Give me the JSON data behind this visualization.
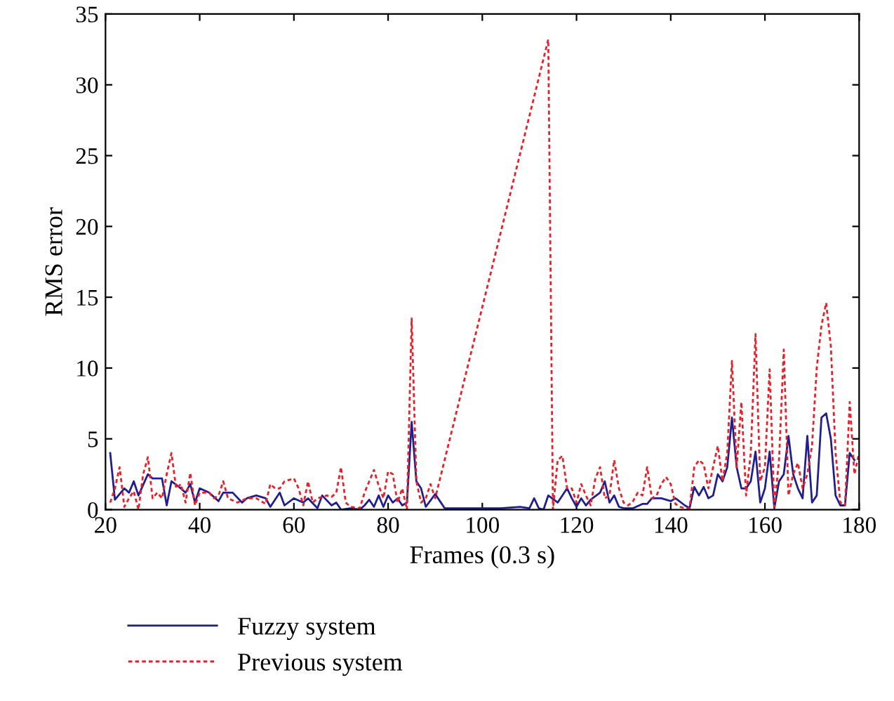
{
  "chart_data": {
    "type": "line",
    "xlabel": "Frames (0.3 s)",
    "ylabel": "RMS error",
    "xlim": [
      20,
      180
    ],
    "ylim": [
      0,
      35
    ],
    "xticks": [
      20,
      40,
      60,
      80,
      100,
      120,
      140,
      160,
      180
    ],
    "yticks": [
      0,
      5,
      10,
      15,
      20,
      25,
      30,
      35
    ],
    "grid": false,
    "legend": "bottom",
    "marker": "none",
    "series": [
      {
        "name": "Fuzzy system",
        "color": "#1f1f8f",
        "line_style": "solid",
        "x": [
          21,
          22,
          24,
          25,
          26,
          27,
          29,
          30,
          32,
          33,
          34,
          36,
          37,
          38,
          39,
          40,
          42,
          44,
          45,
          47,
          49,
          50,
          52,
          54,
          55,
          57,
          58,
          60,
          62,
          63,
          65,
          66,
          68,
          69,
          70,
          72,
          74,
          75,
          76,
          77,
          78,
          79,
          80,
          81,
          82,
          83,
          84,
          85,
          86,
          87,
          88,
          90,
          92,
          100,
          104,
          108,
          110,
          111,
          112,
          113,
          114,
          116,
          118,
          119,
          120,
          121,
          122,
          123,
          125,
          126,
          127,
          128,
          129,
          130,
          132,
          134,
          135,
          136,
          138,
          140,
          141,
          143,
          144,
          145,
          146,
          147,
          148,
          149,
          150,
          151,
          152,
          153,
          154,
          155,
          156,
          157,
          158,
          159,
          160,
          161,
          162,
          163,
          164,
          165,
          166,
          167,
          168,
          169,
          170,
          171,
          172,
          173,
          174,
          175,
          176,
          177,
          178,
          179
        ],
        "values": [
          4,
          0.7,
          1.5,
          1.2,
          2,
          1,
          2.5,
          2.2,
          2.2,
          0.3,
          2,
          1.5,
          1.2,
          1.8,
          0.5,
          1.5,
          1.2,
          0.6,
          1.2,
          1.2,
          0.5,
          0.8,
          1,
          0.8,
          0.2,
          1.2,
          0.3,
          0.8,
          0.5,
          0.8,
          0.1,
          1,
          0.3,
          0.5,
          0,
          0.1,
          0,
          0.3,
          0.7,
          0.2,
          1,
          0.2,
          1,
          0.5,
          0.8,
          0.3,
          0.5,
          6.2,
          2,
          1.5,
          0.2,
          1.1,
          0.1,
          0.1,
          0.1,
          0.2,
          0.1,
          0.8,
          0.1,
          0,
          1,
          0.5,
          1.5,
          0.8,
          0.2,
          0.8,
          0.3,
          0.7,
          1.2,
          2,
          0.5,
          1,
          0.2,
          0.1,
          0.1,
          0.4,
          0.4,
          0.8,
          0.8,
          0.6,
          0.8,
          0.3,
          0.1,
          1.6,
          1,
          1.6,
          0.8,
          1,
          2.5,
          2,
          3,
          6.5,
          3,
          1.5,
          1.5,
          2,
          4.1,
          0.5,
          1.5,
          4.1,
          0.1,
          2,
          2.5,
          5.2,
          2.5,
          1.5,
          0.8,
          5.2,
          0.5,
          1,
          6.5,
          6.8,
          5,
          1,
          0.3,
          0.3,
          4,
          3.5
        ]
      },
      {
        "name": "Previous system",
        "color": "#e8202a",
        "line_style": "dotted",
        "x": [
          21,
          22,
          23,
          24,
          25,
          26,
          27,
          28,
          29,
          30,
          31,
          32,
          33,
          34,
          35,
          36,
          37,
          38,
          39,
          40,
          42,
          43,
          44,
          45,
          46,
          48,
          50,
          52,
          54,
          55,
          56,
          57,
          58,
          60,
          61,
          62,
          63,
          64,
          65,
          67,
          68,
          69,
          70,
          71,
          72,
          74,
          75,
          76,
          77,
          78,
          79,
          80,
          81,
          82,
          83,
          84,
          85,
          86,
          87,
          88,
          89,
          90,
          114,
          115,
          116,
          117,
          118,
          119,
          120,
          121,
          122,
          123,
          124,
          125,
          126,
          127,
          128,
          129,
          130,
          131,
          132,
          133,
          134,
          135,
          136,
          137,
          138,
          139,
          140,
          141,
          142,
          143,
          144,
          145,
          146,
          147,
          148,
          149,
          150,
          151,
          152,
          153,
          154,
          155,
          156,
          157,
          158,
          159,
          160,
          161,
          162,
          163,
          164,
          165,
          166,
          167,
          168,
          169,
          170,
          171,
          172,
          173,
          174,
          175,
          176,
          177,
          178,
          179,
          180
        ],
        "values": [
          0.5,
          1.5,
          3,
          0.2,
          0.8,
          1.3,
          0,
          2.5,
          3.7,
          0.8,
          1.2,
          0.8,
          2.5,
          4,
          1.5,
          1.8,
          0.5,
          2.6,
          0.3,
          1.2,
          1.2,
          0.8,
          1,
          2,
          0.8,
          0.5,
          0.8,
          0.8,
          0.4,
          1.8,
          1.5,
          1.5,
          2,
          2.2,
          1.5,
          0.3,
          2,
          0.5,
          0.8,
          1,
          0.9,
          1.2,
          3,
          0.5,
          0.2,
          0.1,
          1.2,
          2,
          2.8,
          1.7,
          0.8,
          2.7,
          2.5,
          0.5,
          1.5,
          0,
          13.5,
          2,
          0.5,
          0.8,
          1.8,
          0.8,
          33.2,
          0,
          3.5,
          3.8,
          1.5,
          1.5,
          0.5,
          1.8,
          1,
          0.3,
          2.2,
          3,
          0.8,
          1,
          3.5,
          1.5,
          0.5,
          0.3,
          0.6,
          1.2,
          1,
          3,
          0.8,
          1,
          1.8,
          2.3,
          1.8,
          0.4,
          0.2,
          0.1,
          0.1,
          3,
          3.5,
          3.2,
          1.5,
          3,
          4.5,
          2,
          4,
          10.5,
          3,
          7.6,
          1,
          4,
          12.4,
          2,
          3,
          9.9,
          0.2,
          3.5,
          11.3,
          1,
          2.5,
          3.3,
          1.5,
          2.5,
          4.5,
          10,
          13,
          14.6,
          11.5,
          4,
          0.5,
          0.3,
          7.6,
          2.5,
          4
        ]
      }
    ]
  }
}
